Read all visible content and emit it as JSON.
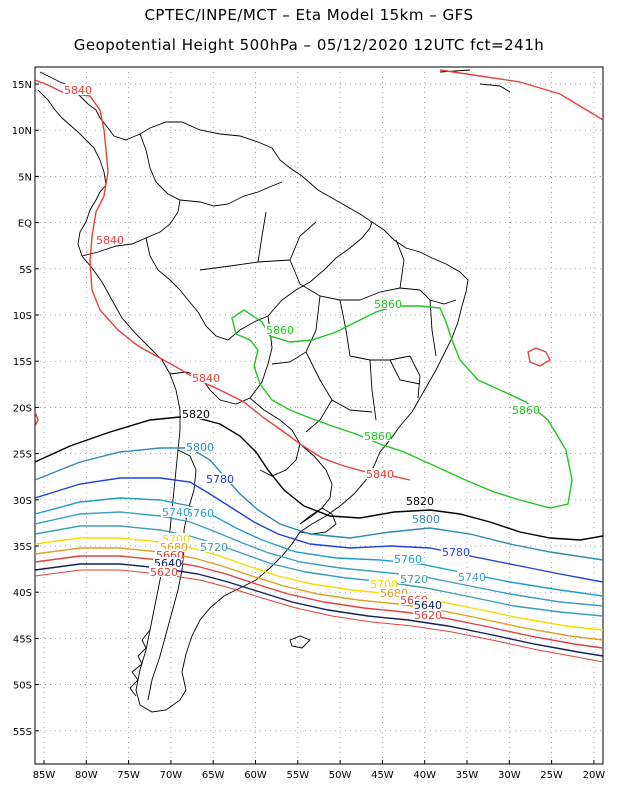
{
  "header": {
    "line1": "CPTEC/INPE/MCT –  Eta Model 15km – GFS",
    "line2": "Geopotential Height 500hPa – 05/12/2020 12UTC fct=241h"
  },
  "axes": {
    "lat_labels": [
      "15N",
      "10N",
      "5N",
      "EQ",
      "5S",
      "10S",
      "15S",
      "20S",
      "25S",
      "30S",
      "35S",
      "40S",
      "45S",
      "50S",
      "55S"
    ],
    "lon_labels": [
      "85W",
      "80W",
      "75W",
      "70W",
      "65W",
      "60W",
      "55W",
      "50W",
      "45W",
      "40W",
      "35W",
      "30W",
      "25W",
      "20W"
    ]
  },
  "colors": {
    "c5840": "#e8403c",
    "c5860": "#1ec81e",
    "c5820": "#000000",
    "c5800": "#2e8ab8",
    "c5780": "#2040e0",
    "c5760": "#1e9ec8",
    "c5740": "#3c9ec8",
    "c5720": "#3ca0b0",
    "c5700": "#f0e000",
    "c5680": "#e0a020",
    "c5660": "#e04040",
    "c5640": "#102060",
    "c5620": "#e04040",
    "border": "#000000",
    "grid": "#888888"
  },
  "contour_labels": [
    {
      "id": "l5840a",
      "text": "5840",
      "c": "c5840"
    },
    {
      "id": "l5840b",
      "text": "5840",
      "c": "c5840"
    },
    {
      "id": "l5840c",
      "text": "5840",
      "c": "c5840"
    },
    {
      "id": "l5840d",
      "text": "5840",
      "c": "c5840"
    },
    {
      "id": "l5860a",
      "text": "5860",
      "c": "c5860"
    },
    {
      "id": "l5860b",
      "text": "5860",
      "c": "c5860"
    },
    {
      "id": "l5860c",
      "text": "5860",
      "c": "c5860"
    },
    {
      "id": "l5860d",
      "text": "5860",
      "c": "c5860"
    },
    {
      "id": "l5820a",
      "text": "5820",
      "c": "c5820"
    },
    {
      "id": "l5820b",
      "text": "5820",
      "c": "c5820"
    },
    {
      "id": "l5800a",
      "text": "5800",
      "c": "c5800"
    },
    {
      "id": "l5800b",
      "text": "5800",
      "c": "c5800"
    },
    {
      "id": "l5780a",
      "text": "5780",
      "c": "c5780"
    },
    {
      "id": "l5780b",
      "text": "5780",
      "c": "c5780"
    },
    {
      "id": "l5760a",
      "text": "5760",
      "c": "c5760"
    },
    {
      "id": "l5760b",
      "text": "5760",
      "c": "c5760"
    },
    {
      "id": "l5740a",
      "text": "5740",
      "c": "c5740"
    },
    {
      "id": "l5740b",
      "text": "5740",
      "c": "c5740"
    },
    {
      "id": "l5720a",
      "text": "5720",
      "c": "c5720"
    },
    {
      "id": "l5720b",
      "text": "5720",
      "c": "c5720"
    },
    {
      "id": "l5700a",
      "text": "5700",
      "c": "c5700"
    },
    {
      "id": "l5700b",
      "text": "5700",
      "c": "c5700"
    },
    {
      "id": "l5680a",
      "text": "5680",
      "c": "c5680"
    },
    {
      "id": "l5680b",
      "text": "5680",
      "c": "c5680"
    },
    {
      "id": "l5660a",
      "text": "5660",
      "c": "c5660"
    },
    {
      "id": "l5660b",
      "text": "5660",
      "c": "c5660"
    },
    {
      "id": "l5640a",
      "text": "5640",
      "c": "c5640"
    },
    {
      "id": "l5640b",
      "text": "5640",
      "c": "c5640"
    },
    {
      "id": "l5620a",
      "text": "5620",
      "c": "c5620"
    },
    {
      "id": "l5620b",
      "text": "5620",
      "c": "c5620"
    }
  ]
}
